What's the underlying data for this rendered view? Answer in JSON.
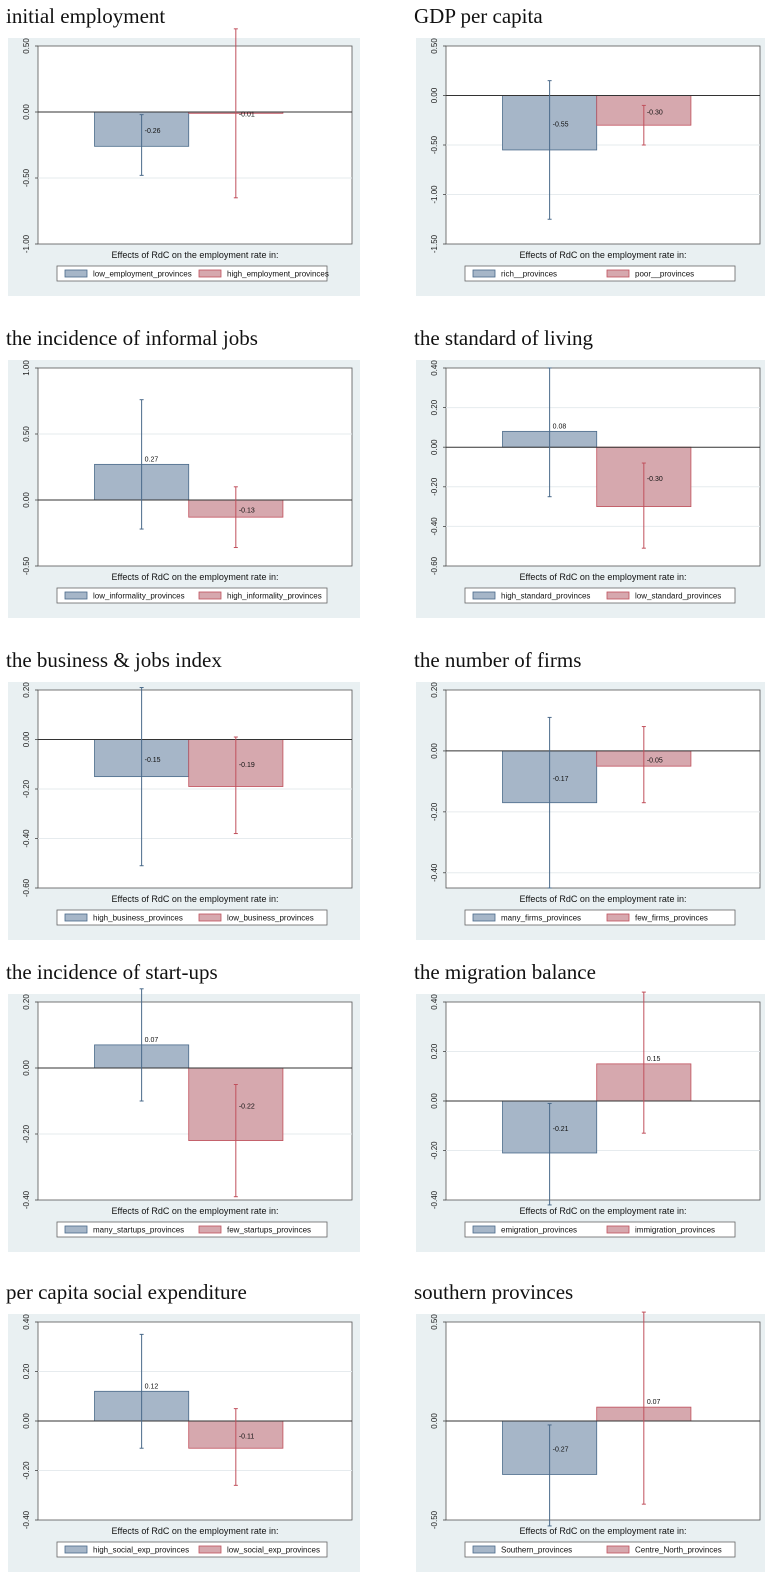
{
  "colors": {
    "series1_fill": "#a6b6c8",
    "series1_line": "#4a6a8a",
    "series2_fill": "#d6a8ae",
    "series2_line": "#c0505c",
    "frame_bg": "#e9f0f2",
    "grid": "#e6ebee"
  },
  "chart_data": [
    {
      "type": "bar",
      "title": "initial employment",
      "xlabel": "Effects of RdC on the employment rate in:",
      "ylim": [
        -1.0,
        0.5
      ],
      "yticks": [
        "0.50",
        "0.00",
        "-0.50",
        "-1.00"
      ],
      "ytick_values": [
        0.5,
        0.0,
        -0.5,
        -1.0
      ],
      "series": [
        {
          "name": "low_employment_provinces",
          "value": -0.26,
          "label": "-0.26",
          "ci": [
            -0.48,
            -0.02
          ]
        },
        {
          "name": "high_employment_provinces",
          "value": -0.01,
          "label": "-0.01",
          "ci": [
            -0.65,
            0.63
          ]
        }
      ]
    },
    {
      "type": "bar",
      "title": "GDP per capita",
      "xlabel": "Effects of RdC on the employment rate in:",
      "ylim": [
        -1.5,
        0.5
      ],
      "yticks": [
        "0.50",
        "0.00",
        "-0.50",
        "-1.00",
        "-1.50"
      ],
      "ytick_values": [
        0.5,
        0.0,
        -0.5,
        -1.0,
        -1.5
      ],
      "series": [
        {
          "name": "rich__provinces",
          "value": -0.55,
          "label": "-0.55",
          "ci": [
            -1.25,
            0.15
          ]
        },
        {
          "name": "poor__provinces",
          "value": -0.3,
          "label": "-0.30",
          "ci": [
            -0.5,
            -0.1
          ]
        }
      ]
    },
    {
      "type": "bar",
      "title": "the incidence of informal jobs",
      "xlabel": "Effects of RdC on the employment rate in:",
      "ylim": [
        -0.5,
        1.0
      ],
      "yticks": [
        "1.00",
        "0.50",
        "0.00",
        "-0.50"
      ],
      "ytick_values": [
        1.0,
        0.5,
        0.0,
        -0.5
      ],
      "series": [
        {
          "name": "low_informality_provinces",
          "value": 0.27,
          "label": "0.27",
          "ci": [
            -0.22,
            0.76
          ]
        },
        {
          "name": "high_informality_provinces",
          "value": -0.13,
          "label": "-0.13",
          "ci": [
            -0.36,
            0.1
          ]
        }
      ]
    },
    {
      "type": "bar",
      "title": "the standard of living",
      "xlabel": "Effects of RdC on the employment rate in:",
      "ylim": [
        -0.6,
        0.4
      ],
      "yticks": [
        "0.40",
        "0.20",
        "0.00",
        "-0.20",
        "-0.40",
        "-0.60"
      ],
      "ytick_values": [
        0.4,
        0.2,
        0.0,
        -0.2,
        -0.4,
        -0.6
      ],
      "series": [
        {
          "name": "high_standard_provinces",
          "value": 0.08,
          "label": "0.08",
          "ci": [
            -0.25,
            0.4
          ]
        },
        {
          "name": "low_standard_provinces",
          "value": -0.3,
          "label": "-0.30",
          "ci": [
            -0.51,
            -0.08
          ]
        }
      ]
    },
    {
      "type": "bar",
      "title": "the business & jobs index",
      "xlabel": "Effects of RdC on the employment rate in:",
      "ylim": [
        -0.6,
        0.2
      ],
      "yticks": [
        "0.20",
        "0.00",
        "-0.20",
        "-0.40",
        "-0.60"
      ],
      "ytick_values": [
        0.2,
        0.0,
        -0.2,
        -0.4,
        -0.6
      ],
      "series": [
        {
          "name": "high_business_provinces",
          "value": -0.15,
          "label": "-0.15",
          "ci": [
            -0.51,
            0.21
          ]
        },
        {
          "name": "low_business_provinces",
          "value": -0.19,
          "label": "-0.19",
          "ci": [
            -0.38,
            0.01
          ]
        }
      ]
    },
    {
      "type": "bar",
      "title": "the number of firms",
      "xlabel": "Effects of RdC on the employment rate in:",
      "ylim": [
        -0.45,
        0.2
      ],
      "yticks": [
        "0.20",
        "0.00",
        "-0.20",
        "-0.40"
      ],
      "ytick_values": [
        0.2,
        0.0,
        -0.2,
        -0.4
      ],
      "series": [
        {
          "name": "many_firms_provinces",
          "value": -0.17,
          "label": "-0.17",
          "ci": [
            -0.45,
            0.11
          ]
        },
        {
          "name": "few_firms_provinces",
          "value": -0.05,
          "label": "-0.05",
          "ci": [
            -0.17,
            0.08
          ]
        }
      ]
    },
    {
      "type": "bar",
      "title": "the incidence of start-ups",
      "xlabel": "Effects of RdC on the employment rate in:",
      "ylim": [
        -0.4,
        0.2
      ],
      "yticks": [
        "0.20",
        "0.00",
        "-0.20",
        "-0.40"
      ],
      "ytick_values": [
        0.2,
        0.0,
        -0.2,
        -0.4
      ],
      "series": [
        {
          "name": "many_startups_provinces",
          "value": 0.07,
          "label": "0.07",
          "ci": [
            -0.1,
            0.24
          ]
        },
        {
          "name": "few_startups_provinces",
          "value": -0.22,
          "label": "-0.22",
          "ci": [
            -0.39,
            -0.05
          ]
        }
      ]
    },
    {
      "type": "bar",
      "title": "the migration balance",
      "xlabel": "Effects of RdC on the employment rate in:",
      "ylim": [
        -0.4,
        0.4
      ],
      "yticks": [
        "0.40",
        "0.20",
        "0.00",
        "-0.20",
        "-0.40"
      ],
      "ytick_values": [
        0.4,
        0.2,
        0.0,
        -0.2,
        -0.4
      ],
      "series": [
        {
          "name": "emigration_provinces",
          "value": -0.21,
          "label": "-0.21",
          "ci": [
            -0.42,
            -0.01
          ]
        },
        {
          "name": "immigration_provinces",
          "value": 0.15,
          "label": "0.15",
          "ci": [
            -0.13,
            0.44
          ]
        }
      ]
    },
    {
      "type": "bar",
      "title": "per capita social expenditure",
      "xlabel": "Effects of RdC on the employment rate in:",
      "ylim": [
        -0.4,
        0.4
      ],
      "yticks": [
        "0.40",
        "0.20",
        "0.00",
        "-0.20",
        "-0.40"
      ],
      "ytick_values": [
        0.4,
        0.2,
        0.0,
        -0.2,
        -0.4
      ],
      "series": [
        {
          "name": "high_social_exp_provinces",
          "value": 0.12,
          "label": "0.12",
          "ci": [
            -0.11,
            0.35
          ]
        },
        {
          "name": "low_social_exp_provinces",
          "value": -0.11,
          "label": "-0.11",
          "ci": [
            -0.26,
            0.05
          ]
        }
      ]
    },
    {
      "type": "bar",
      "title": "southern provinces",
      "xlabel": "Effects of RdC on the employment rate in:",
      "ylim": [
        -0.5,
        0.5
      ],
      "yticks": [
        "0.50",
        "0.00",
        "-0.50"
      ],
      "ytick_values": [
        0.5,
        0.0,
        -0.5
      ],
      "series": [
        {
          "name": "Southern_provinces",
          "value": -0.27,
          "label": "-0.27",
          "ci": [
            -0.53,
            -0.02
          ]
        },
        {
          "name": "Centre_North_provinces",
          "value": 0.07,
          "label": "0.07",
          "ci": [
            -0.42,
            0.55
          ]
        }
      ]
    }
  ]
}
